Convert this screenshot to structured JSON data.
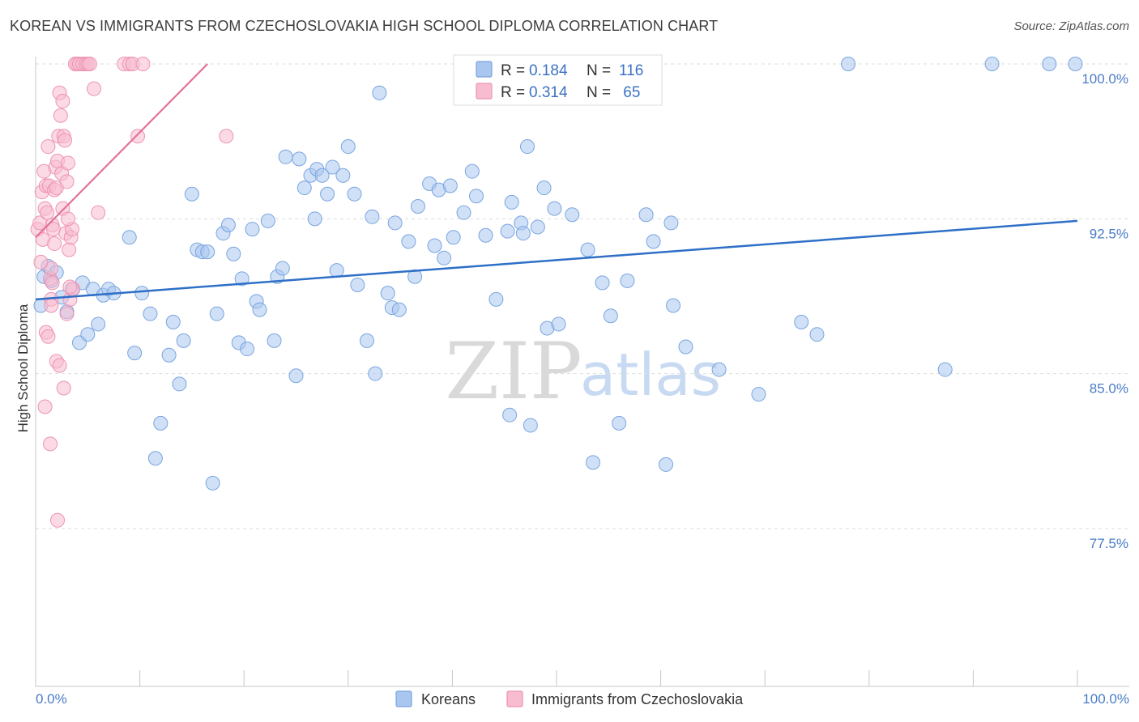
{
  "header": {
    "title": "KOREAN VS IMMIGRANTS FROM CZECHOSLOVAKIA HIGH SCHOOL DIPLOMA CORRELATION CHART",
    "source": "Source: ZipAtlas.com"
  },
  "watermark": {
    "zip": "ZIP",
    "atlas": "atlas"
  },
  "colors": {
    "korean_fill": "#a9c6ee",
    "korean_stroke": "#7aa5e0",
    "korean_line": "#2e6fc7",
    "czech_fill": "#f7bcd0",
    "czech_stroke": "#ee93b2",
    "czech_line": "#e2729a",
    "axis_label": "#4a7cc6",
    "grid": "#dddddd"
  },
  "legend": {
    "rows": [
      {
        "r_label": "R = ",
        "r_value": "0.184",
        "n_label": "N = ",
        "n_value": "116"
      },
      {
        "r_label": "R = ",
        "r_value": "0.314",
        "n_label": "N = ",
        "n_value": " 65"
      }
    ]
  },
  "chart_data": {
    "type": "scatter",
    "title": "KOREAN VS IMMIGRANTS FROM CZECHOSLOVAKIA HIGH SCHOOL DIPLOMA CORRELATION CHART",
    "xlabel": "",
    "ylabel": "High School Diploma",
    "xlim": [
      0,
      100
    ],
    "ylim": [
      70.0,
      101.5
    ],
    "x_tick_labels": [
      "0.0%",
      "100.0%"
    ],
    "y_ticks": [
      100.0,
      92.5,
      85.0,
      77.5
    ],
    "y_tick_labels": [
      "100.0%",
      "92.5%",
      "85.0%",
      "77.5%"
    ],
    "grid": true,
    "legend_position": "top-center",
    "series": [
      {
        "name": "Koreans",
        "r": 0.184,
        "n": 116,
        "trend": {
          "x": [
            0,
            100
          ],
          "y": [
            88.6,
            92.4
          ]
        },
        "points": [
          [
            0.5,
            88.3
          ],
          [
            0.8,
            89.7
          ],
          [
            1.2,
            90.2
          ],
          [
            1.5,
            89.5
          ],
          [
            2.0,
            89.9
          ],
          [
            2.5,
            88.7
          ],
          [
            3.0,
            88.0
          ],
          [
            3.5,
            89.1
          ],
          [
            4.2,
            86.5
          ],
          [
            4.5,
            89.4
          ],
          [
            5.0,
            86.9
          ],
          [
            5.5,
            89.1
          ],
          [
            6.0,
            87.4
          ],
          [
            6.5,
            88.8
          ],
          [
            7.0,
            89.1
          ],
          [
            7.5,
            88.9
          ],
          [
            9.0,
            91.6
          ],
          [
            9.5,
            86.0
          ],
          [
            10.2,
            88.9
          ],
          [
            11.0,
            87.9
          ],
          [
            11.5,
            80.9
          ],
          [
            12.0,
            82.6
          ],
          [
            12.8,
            85.9
          ],
          [
            13.2,
            87.5
          ],
          [
            13.8,
            84.5
          ],
          [
            14.2,
            86.6
          ],
          [
            15.0,
            93.7
          ],
          [
            15.5,
            91.0
          ],
          [
            16.0,
            90.9
          ],
          [
            16.5,
            90.9
          ],
          [
            17.0,
            79.7
          ],
          [
            17.4,
            87.9
          ],
          [
            18.0,
            91.8
          ],
          [
            18.5,
            92.2
          ],
          [
            19.0,
            90.8
          ],
          [
            19.5,
            86.5
          ],
          [
            19.8,
            89.6
          ],
          [
            20.3,
            86.2
          ],
          [
            20.8,
            92.0
          ],
          [
            21.2,
            88.5
          ],
          [
            21.5,
            88.1
          ],
          [
            22.3,
            92.4
          ],
          [
            22.9,
            86.6
          ],
          [
            23.2,
            89.7
          ],
          [
            23.7,
            90.1
          ],
          [
            24.0,
            95.5
          ],
          [
            25.0,
            84.9
          ],
          [
            25.3,
            95.4
          ],
          [
            25.8,
            94.0
          ],
          [
            26.4,
            94.6
          ],
          [
            26.8,
            92.5
          ],
          [
            27.0,
            94.9
          ],
          [
            27.5,
            94.6
          ],
          [
            28.0,
            93.7
          ],
          [
            28.5,
            95.0
          ],
          [
            28.9,
            90.0
          ],
          [
            29.5,
            94.6
          ],
          [
            30.0,
            96.0
          ],
          [
            30.6,
            93.7
          ],
          [
            30.9,
            89.3
          ],
          [
            31.8,
            86.6
          ],
          [
            32.3,
            92.6
          ],
          [
            32.6,
            85.0
          ],
          [
            33.0,
            98.6
          ],
          [
            33.8,
            88.9
          ],
          [
            34.2,
            88.2
          ],
          [
            34.5,
            92.3
          ],
          [
            34.9,
            88.1
          ],
          [
            35.8,
            91.4
          ],
          [
            36.4,
            89.7
          ],
          [
            36.7,
            93.1
          ],
          [
            37.8,
            94.2
          ],
          [
            38.3,
            91.2
          ],
          [
            38.7,
            93.9
          ],
          [
            39.2,
            90.6
          ],
          [
            39.8,
            94.1
          ],
          [
            40.1,
            91.6
          ],
          [
            41.1,
            92.8
          ],
          [
            41.9,
            94.8
          ],
          [
            42.3,
            93.6
          ],
          [
            43.2,
            91.7
          ],
          [
            45.3,
            91.9
          ],
          [
            45.5,
            83.0
          ],
          [
            45.7,
            93.3
          ],
          [
            46.6,
            92.3
          ],
          [
            46.8,
            91.8
          ],
          [
            47.2,
            96.0
          ],
          [
            47.5,
            82.5
          ],
          [
            48.2,
            92.1
          ],
          [
            48.8,
            94.0
          ],
          [
            49.1,
            87.2
          ],
          [
            49.8,
            93.0
          ],
          [
            50.2,
            87.4
          ],
          [
            51.5,
            92.7
          ],
          [
            53.0,
            91.0
          ],
          [
            53.5,
            80.7
          ],
          [
            54.4,
            89.4
          ],
          [
            55.2,
            87.8
          ],
          [
            56.0,
            82.6
          ],
          [
            56.8,
            89.5
          ],
          [
            58.6,
            92.7
          ],
          [
            59.3,
            91.4
          ],
          [
            60.5,
            80.6
          ],
          [
            61.0,
            92.3
          ],
          [
            61.2,
            88.3
          ],
          [
            65.6,
            85.2
          ],
          [
            69.4,
            84.0
          ],
          [
            73.5,
            87.5
          ],
          [
            75.0,
            86.9
          ],
          [
            78.0,
            100.0
          ],
          [
            91.8,
            100.0
          ],
          [
            97.3,
            100.0
          ],
          [
            99.8,
            100.0
          ],
          [
            87.3,
            85.2
          ],
          [
            62.4,
            86.3
          ],
          [
            44.2,
            88.6
          ]
        ]
      },
      {
        "name": "Immigrants from Czechoslovakia",
        "r": 0.314,
        "n": 65,
        "trend": {
          "x": [
            0,
            16.5
          ],
          "y": [
            91.6,
            100.0
          ]
        },
        "points": [
          [
            0.2,
            92.0
          ],
          [
            0.4,
            92.3
          ],
          [
            0.6,
            93.8
          ],
          [
            0.7,
            91.5
          ],
          [
            0.8,
            94.8
          ],
          [
            0.9,
            93.0
          ],
          [
            1.0,
            94.1
          ],
          [
            1.1,
            92.8
          ],
          [
            1.2,
            96.0
          ],
          [
            1.3,
            94.1
          ],
          [
            1.4,
            89.6
          ],
          [
            1.5,
            90.1
          ],
          [
            1.5,
            88.6
          ],
          [
            1.6,
            92.2
          ],
          [
            1.7,
            92.0
          ],
          [
            1.8,
            93.9
          ],
          [
            1.9,
            95.0
          ],
          [
            2.0,
            94.0
          ],
          [
            2.1,
            95.3
          ],
          [
            2.2,
            96.5
          ],
          [
            2.3,
            98.6
          ],
          [
            2.4,
            97.5
          ],
          [
            2.5,
            94.7
          ],
          [
            2.6,
            98.2
          ],
          [
            2.7,
            96.5
          ],
          [
            2.8,
            96.3
          ],
          [
            2.9,
            91.8
          ],
          [
            3.0,
            94.3
          ],
          [
            3.1,
            95.2
          ],
          [
            3.2,
            91.0
          ],
          [
            3.3,
            88.6
          ],
          [
            3.4,
            91.6
          ],
          [
            3.5,
            92.0
          ],
          [
            3.6,
            89.1
          ],
          [
            3.8,
            100.0
          ],
          [
            4.0,
            100.0
          ],
          [
            4.2,
            100.0
          ],
          [
            4.5,
            100.0
          ],
          [
            4.8,
            100.0
          ],
          [
            5.0,
            100.0
          ],
          [
            5.2,
            100.0
          ],
          [
            5.6,
            98.8
          ],
          [
            6.0,
            92.8
          ],
          [
            8.5,
            100.0
          ],
          [
            9.0,
            100.0
          ],
          [
            9.3,
            100.0
          ],
          [
            9.8,
            96.5
          ],
          [
            10.3,
            100.0
          ],
          [
            18.3,
            96.5
          ],
          [
            0.9,
            83.4
          ],
          [
            1.4,
            81.6
          ],
          [
            2.1,
            77.9
          ],
          [
            1.0,
            87.0
          ],
          [
            1.2,
            86.8
          ],
          [
            1.5,
            88.3
          ],
          [
            2.0,
            85.6
          ],
          [
            2.3,
            85.4
          ],
          [
            2.7,
            84.3
          ],
          [
            3.0,
            87.9
          ],
          [
            3.3,
            89.2
          ],
          [
            1.6,
            89.4
          ],
          [
            0.5,
            90.4
          ],
          [
            1.8,
            91.3
          ],
          [
            2.6,
            93.0
          ],
          [
            3.1,
            92.5
          ]
        ]
      }
    ]
  },
  "axes": {
    "y_title": "High School Diploma",
    "x_left_label": "0.0%",
    "x_right_label": "100.0%"
  },
  "bottom_legend": {
    "items": [
      {
        "label": "Koreans"
      },
      {
        "label": "Immigrants from Czechoslovakia"
      }
    ]
  }
}
